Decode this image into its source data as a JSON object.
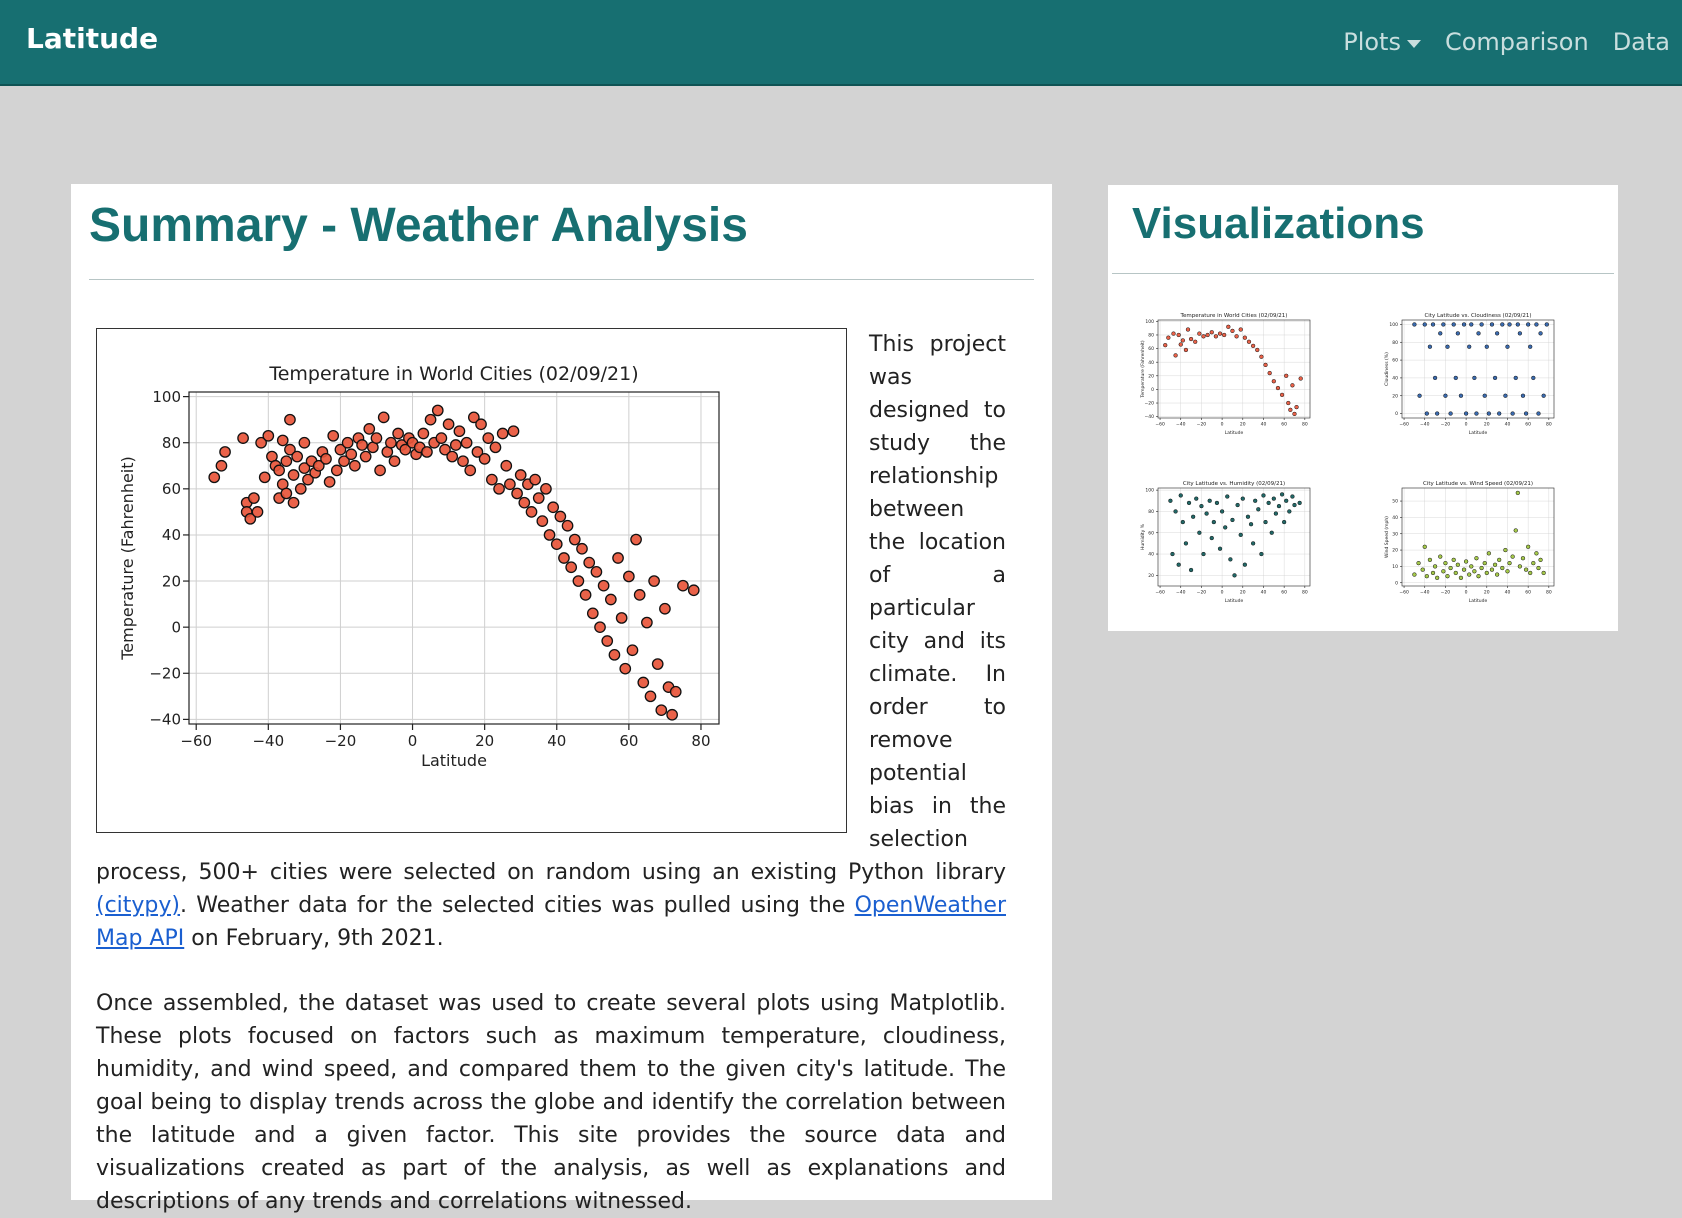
{
  "navbar": {
    "brand": "Latitude",
    "links": [
      {
        "label": "Plots",
        "dropdown": true
      },
      {
        "label": "Comparison"
      },
      {
        "label": "Data"
      }
    ]
  },
  "summary": {
    "title": "Summary - Weather Analysis",
    "paragraph1_before_citypy": "This project was designed to study the relationship between the location of a particular city and its climate. In order to remove potential bias in the selection process, 500+ cities were selected on random using an existing Python library ",
    "citypy_link": "(citypy)",
    "paragraph1_after_citypy": ". Weather data for the selected cities was pulled using the ",
    "openweather_link": "OpenWeather Map API",
    "paragraph1_end": " on February, 9th 2021.",
    "paragraph2": "Once assembled, the dataset was used to create several plots using Matplotlib. These plots focused on factors such as maximum temperature, cloudiness, humidity, and wind speed, and compared them to the given city's latitude. The goal being to display trends across the globe and identify the correlation between the latitude and a given factor. This site provides the source data and visualizations created as part of the analysis, as well as explanations and descriptions of any trends and correlations witnessed."
  },
  "visualizations": {
    "title": "Visualizations"
  },
  "colors": {
    "navbar": "#176f71",
    "title": "#176f71",
    "temp_points": "#e8553a",
    "cloud_points": "#2a5ea8",
    "humidity_points": "#0f5b5a",
    "wind_points": "#9dc43b"
  },
  "chart_data": [
    {
      "id": "main-temperature",
      "type": "scatter",
      "title": "Temperature in World Cities (02/09/21)",
      "xlabel": "Latitude",
      "ylabel": "Temperature (Fahrenheit)",
      "xlim": [
        -62,
        85
      ],
      "ylim": [
        -42,
        102
      ],
      "xticks": [
        -60,
        -40,
        -20,
        0,
        20,
        40,
        60,
        80
      ],
      "yticks": [
        100,
        80,
        60,
        40,
        20,
        0,
        -20,
        -40
      ],
      "grid": true,
      "points": [
        [
          -55,
          65
        ],
        [
          -53,
          70
        ],
        [
          -52,
          76
        ],
        [
          -47,
          82
        ],
        [
          -46,
          54
        ],
        [
          -46,
          50
        ],
        [
          -45,
          47
        ],
        [
          -44,
          56
        ],
        [
          -43,
          50
        ],
        [
          -42,
          80
        ],
        [
          -41,
          65
        ],
        [
          -40,
          83
        ],
        [
          -39,
          74
        ],
        [
          -38,
          70
        ],
        [
          -37,
          56
        ],
        [
          -37,
          68
        ],
        [
          -36,
          62
        ],
        [
          -36,
          81
        ],
        [
          -35,
          72
        ],
        [
          -35,
          58
        ],
        [
          -34,
          90
        ],
        [
          -34,
          77
        ],
        [
          -33,
          66
        ],
        [
          -33,
          54
        ],
        [
          -32,
          74
        ],
        [
          -31,
          60
        ],
        [
          -30,
          80
        ],
        [
          -30,
          69
        ],
        [
          -29,
          64
        ],
        [
          -28,
          72
        ],
        [
          -27,
          67
        ],
        [
          -26,
          70
        ],
        [
          -25,
          76
        ],
        [
          -24,
          73
        ],
        [
          -23,
          63
        ],
        [
          -22,
          83
        ],
        [
          -21,
          68
        ],
        [
          -20,
          77
        ],
        [
          -19,
          72
        ],
        [
          -18,
          80
        ],
        [
          -17,
          75
        ],
        [
          -16,
          70
        ],
        [
          -15,
          82
        ],
        [
          -14,
          79
        ],
        [
          -13,
          74
        ],
        [
          -12,
          86
        ],
        [
          -11,
          78
        ],
        [
          -10,
          82
        ],
        [
          -9,
          68
        ],
        [
          -8,
          91
        ],
        [
          -7,
          76
        ],
        [
          -6,
          80
        ],
        [
          -5,
          72
        ],
        [
          -4,
          84
        ],
        [
          -3,
          79
        ],
        [
          -2,
          77
        ],
        [
          -1,
          82
        ],
        [
          0,
          80
        ],
        [
          1,
          75
        ],
        [
          2,
          78
        ],
        [
          3,
          84
        ],
        [
          4,
          76
        ],
        [
          5,
          90
        ],
        [
          6,
          80
        ],
        [
          7,
          94
        ],
        [
          8,
          82
        ],
        [
          9,
          77
        ],
        [
          10,
          88
        ],
        [
          11,
          74
        ],
        [
          12,
          79
        ],
        [
          13,
          85
        ],
        [
          14,
          72
        ],
        [
          15,
          80
        ],
        [
          16,
          68
        ],
        [
          17,
          91
        ],
        [
          18,
          76
        ],
        [
          19,
          88
        ],
        [
          20,
          73
        ],
        [
          21,
          82
        ],
        [
          22,
          64
        ],
        [
          23,
          78
        ],
        [
          24,
          60
        ],
        [
          25,
          84
        ],
        [
          26,
          70
        ],
        [
          27,
          62
        ],
        [
          28,
          85
        ],
        [
          29,
          58
        ],
        [
          30,
          66
        ],
        [
          31,
          54
        ],
        [
          32,
          62
        ],
        [
          33,
          50
        ],
        [
          34,
          64
        ],
        [
          35,
          56
        ],
        [
          36,
          46
        ],
        [
          37,
          60
        ],
        [
          38,
          40
        ],
        [
          39,
          52
        ],
        [
          40,
          36
        ],
        [
          41,
          48
        ],
        [
          42,
          30
        ],
        [
          43,
          44
        ],
        [
          44,
          26
        ],
        [
          45,
          38
        ],
        [
          46,
          20
        ],
        [
          47,
          34
        ],
        [
          48,
          14
        ],
        [
          49,
          28
        ],
        [
          50,
          6
        ],
        [
          51,
          24
        ],
        [
          52,
          0
        ],
        [
          53,
          18
        ],
        [
          54,
          -6
        ],
        [
          55,
          12
        ],
        [
          56,
          -12
        ],
        [
          57,
          30
        ],
        [
          58,
          4
        ],
        [
          59,
          -18
        ],
        [
          60,
          22
        ],
        [
          61,
          -10
        ],
        [
          62,
          38
        ],
        [
          63,
          14
        ],
        [
          64,
          -24
        ],
        [
          65,
          2
        ],
        [
          66,
          -30
        ],
        [
          67,
          20
        ],
        [
          68,
          -16
        ],
        [
          69,
          -36
        ],
        [
          70,
          8
        ],
        [
          71,
          -26
        ],
        [
          72,
          -38
        ],
        [
          73,
          -28
        ],
        [
          75,
          18
        ],
        [
          78,
          16
        ]
      ]
    },
    {
      "id": "thumb-temperature",
      "type": "scatter",
      "title": "Temperature in World Cities (02/09/21)",
      "xlabel": "Latitude",
      "ylabel": "Temperature (Fahrenheit)",
      "xlim": [
        -62,
        85
      ],
      "ylim": [
        -42,
        102
      ],
      "xticks": [
        -60,
        -40,
        -20,
        0,
        20,
        40,
        60,
        80
      ],
      "yticks": [
        100,
        80,
        60,
        40,
        20,
        0,
        -20,
        -40
      ],
      "color": "#e8553a",
      "points": [
        [
          -55,
          65
        ],
        [
          -52,
          76
        ],
        [
          -47,
          82
        ],
        [
          -45,
          50
        ],
        [
          -42,
          80
        ],
        [
          -40,
          66
        ],
        [
          -38,
          72
        ],
        [
          -35,
          58
        ],
        [
          -33,
          88
        ],
        [
          -30,
          74
        ],
        [
          -26,
          70
        ],
        [
          -22,
          82
        ],
        [
          -18,
          78
        ],
        [
          -14,
          80
        ],
        [
          -10,
          84
        ],
        [
          -6,
          78
        ],
        [
          -2,
          82
        ],
        [
          2,
          80
        ],
        [
          6,
          92
        ],
        [
          10,
          86
        ],
        [
          14,
          78
        ],
        [
          18,
          88
        ],
        [
          22,
          76
        ],
        [
          26,
          70
        ],
        [
          30,
          64
        ],
        [
          34,
          58
        ],
        [
          38,
          48
        ],
        [
          42,
          36
        ],
        [
          46,
          24
        ],
        [
          50,
          12
        ],
        [
          54,
          2
        ],
        [
          58,
          -8
        ],
        [
          62,
          20
        ],
        [
          64,
          -20
        ],
        [
          66,
          -30
        ],
        [
          68,
          6
        ],
        [
          70,
          -36
        ],
        [
          72,
          -26
        ],
        [
          76,
          16
        ]
      ]
    },
    {
      "id": "thumb-cloudiness",
      "type": "scatter",
      "title": "City Latitude vs. Cloudiness (02/09/21)",
      "xlabel": "Latitude",
      "ylabel": "Cloudiness (%)",
      "xlim": [
        -62,
        85
      ],
      "ylim": [
        -5,
        105
      ],
      "xticks": [
        -60,
        -40,
        -20,
        0,
        20,
        40,
        60,
        80
      ],
      "yticks": [
        100,
        80,
        60,
        40,
        20,
        0
      ],
      "color": "#2a5ea8",
      "points": [
        [
          -50,
          100
        ],
        [
          -45,
          20
        ],
        [
          -40,
          100
        ],
        [
          -38,
          0
        ],
        [
          -35,
          75
        ],
        [
          -32,
          100
        ],
        [
          -30,
          40
        ],
        [
          -28,
          0
        ],
        [
          -25,
          90
        ],
        [
          -22,
          100
        ],
        [
          -20,
          20
        ],
        [
          -18,
          75
        ],
        [
          -15,
          0
        ],
        [
          -12,
          100
        ],
        [
          -10,
          40
        ],
        [
          -8,
          90
        ],
        [
          -5,
          20
        ],
        [
          -2,
          100
        ],
        [
          0,
          0
        ],
        [
          3,
          75
        ],
        [
          5,
          100
        ],
        [
          8,
          40
        ],
        [
          10,
          0
        ],
        [
          12,
          90
        ],
        [
          15,
          100
        ],
        [
          18,
          20
        ],
        [
          20,
          75
        ],
        [
          22,
          0
        ],
        [
          25,
          100
        ],
        [
          28,
          40
        ],
        [
          30,
          90
        ],
        [
          32,
          0
        ],
        [
          35,
          100
        ],
        [
          38,
          20
        ],
        [
          40,
          75
        ],
        [
          42,
          100
        ],
        [
          45,
          0
        ],
        [
          48,
          40
        ],
        [
          50,
          100
        ],
        [
          52,
          90
        ],
        [
          55,
          20
        ],
        [
          58,
          0
        ],
        [
          60,
          100
        ],
        [
          62,
          75
        ],
        [
          65,
          40
        ],
        [
          68,
          100
        ],
        [
          70,
          0
        ],
        [
          72,
          90
        ],
        [
          75,
          20
        ],
        [
          78,
          100
        ]
      ]
    },
    {
      "id": "thumb-humidity",
      "type": "scatter",
      "title": "City Latitude vs. Humidity (02/09/21)",
      "xlabel": "Latitude",
      "ylabel": "Humidity %",
      "xlim": [
        -62,
        85
      ],
      "ylim": [
        10,
        102
      ],
      "xticks": [
        -60,
        -40,
        -20,
        0,
        20,
        40,
        60,
        80
      ],
      "yticks": [
        100,
        80,
        60,
        40,
        20
      ],
      "color": "#0f5b5a",
      "points": [
        [
          -50,
          90
        ],
        [
          -48,
          40
        ],
        [
          -45,
          80
        ],
        [
          -42,
          30
        ],
        [
          -40,
          95
        ],
        [
          -38,
          70
        ],
        [
          -35,
          50
        ],
        [
          -32,
          88
        ],
        [
          -30,
          25
        ],
        [
          -28,
          75
        ],
        [
          -25,
          92
        ],
        [
          -22,
          60
        ],
        [
          -20,
          85
        ],
        [
          -18,
          40
        ],
        [
          -15,
          78
        ],
        [
          -12,
          90
        ],
        [
          -10,
          55
        ],
        [
          -8,
          70
        ],
        [
          -5,
          88
        ],
        [
          -2,
          45
        ],
        [
          0,
          80
        ],
        [
          3,
          65
        ],
        [
          5,
          94
        ],
        [
          8,
          35
        ],
        [
          10,
          72
        ],
        [
          12,
          20
        ],
        [
          15,
          86
        ],
        [
          18,
          58
        ],
        [
          20,
          92
        ],
        [
          22,
          30
        ],
        [
          25,
          75
        ],
        [
          28,
          68
        ],
        [
          30,
          50
        ],
        [
          32,
          90
        ],
        [
          35,
          82
        ],
        [
          38,
          40
        ],
        [
          40,
          95
        ],
        [
          42,
          70
        ],
        [
          45,
          88
        ],
        [
          48,
          60
        ],
        [
          50,
          92
        ],
        [
          52,
          78
        ],
        [
          55,
          85
        ],
        [
          58,
          96
        ],
        [
          60,
          70
        ],
        [
          62,
          90
        ],
        [
          65,
          80
        ],
        [
          68,
          94
        ],
        [
          70,
          86
        ],
        [
          75,
          88
        ]
      ]
    },
    {
      "id": "thumb-wind",
      "type": "scatter",
      "title": "City Latitude vs. Wind Speed (02/09/21)",
      "xlabel": "Latitude",
      "ylabel": "Wind Speed (mph)",
      "xlim": [
        -62,
        85
      ],
      "ylim": [
        -2,
        58
      ],
      "xticks": [
        -60,
        -40,
        -20,
        0,
        20,
        40,
        60,
        80
      ],
      "yticks": [
        50,
        40,
        30,
        20,
        10,
        0
      ],
      "color": "#9dc43b",
      "points": [
        [
          -50,
          5
        ],
        [
          -46,
          12
        ],
        [
          -42,
          8
        ],
        [
          -40,
          22
        ],
        [
          -38,
          4
        ],
        [
          -35,
          14
        ],
        [
          -32,
          6
        ],
        [
          -30,
          10
        ],
        [
          -28,
          3
        ],
        [
          -25,
          16
        ],
        [
          -22,
          7
        ],
        [
          -20,
          12
        ],
        [
          -18,
          4
        ],
        [
          -15,
          9
        ],
        [
          -12,
          14
        ],
        [
          -10,
          6
        ],
        [
          -8,
          11
        ],
        [
          -5,
          3
        ],
        [
          -2,
          8
        ],
        [
          0,
          13
        ],
        [
          3,
          5
        ],
        [
          5,
          10
        ],
        [
          8,
          7
        ],
        [
          10,
          15
        ],
        [
          12,
          4
        ],
        [
          15,
          9
        ],
        [
          18,
          12
        ],
        [
          20,
          6
        ],
        [
          22,
          18
        ],
        [
          25,
          8
        ],
        [
          28,
          11
        ],
        [
          30,
          5
        ],
        [
          32,
          14
        ],
        [
          35,
          9
        ],
        [
          38,
          20
        ],
        [
          40,
          7
        ],
        [
          42,
          12
        ],
        [
          45,
          16
        ],
        [
          48,
          32
        ],
        [
          50,
          55
        ],
        [
          52,
          10
        ],
        [
          55,
          15
        ],
        [
          58,
          8
        ],
        [
          60,
          22
        ],
        [
          62,
          6
        ],
        [
          65,
          12
        ],
        [
          68,
          18
        ],
        [
          70,
          9
        ],
        [
          72,
          14
        ],
        [
          75,
          6
        ]
      ]
    }
  ]
}
